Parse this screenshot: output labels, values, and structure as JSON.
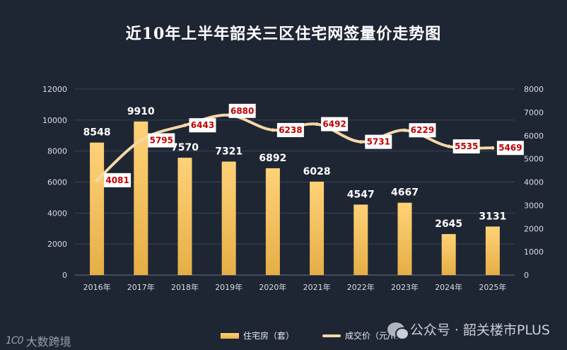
{
  "chart_data": {
    "type": "bar+line",
    "title": "近10年上半年韶关三区住宅网签量价走势图",
    "categories": [
      "2016年",
      "2017年",
      "2018年",
      "2019年",
      "2020年",
      "2021年",
      "2022年",
      "2023年",
      "2024年",
      "2025年"
    ],
    "series": [
      {
        "name": "住宅房（套）",
        "type": "bar",
        "axis": "left",
        "values": [
          8548,
          9910,
          7570,
          7321,
          6892,
          6028,
          4547,
          4667,
          2645,
          3131
        ]
      },
      {
        "name": "成交价（元/㎡）",
        "type": "line",
        "axis": "right",
        "values": [
          4081,
          5795,
          6443,
          6880,
          6238,
          6492,
          5731,
          6229,
          5535,
          5469
        ]
      }
    ],
    "y_left": {
      "min": 0,
      "max": 12000,
      "ticks": [
        0,
        2000,
        4000,
        6000,
        8000,
        10000,
        12000
      ]
    },
    "y_right": {
      "min": 0,
      "max": 8000,
      "ticks": [
        0,
        1000,
        2000,
        3000,
        4000,
        5000,
        6000,
        7000,
        8000
      ]
    },
    "grid": true,
    "legend_position": "bottom",
    "colors": {
      "bar_top": "#ffd278",
      "bar_bottom": "#e8b24a",
      "line": "#f6d8a6",
      "line_label": "#c00000",
      "background": "#1e2634",
      "grid": "#3a4354"
    }
  },
  "legend": {
    "bar_label": "住宅房（套）",
    "line_label": "成交价（元/㎡）"
  },
  "watermark": {
    "text": "公众号 · 韶关楼市PLUS",
    "icon": "wechat-icon"
  },
  "logo": {
    "mark": "1C0",
    "text": "大数跨境"
  }
}
